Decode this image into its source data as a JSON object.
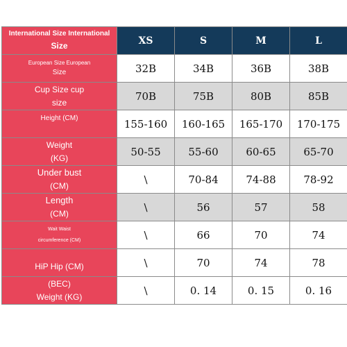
{
  "header": {
    "corner_line1": "International Size International",
    "corner_line2": "Size",
    "sizes": [
      "XS",
      "S",
      "M",
      "L"
    ]
  },
  "rows": [
    {
      "label_line1": "European Size European",
      "label_line2": "Size",
      "values": [
        "32B",
        "34B",
        "36B",
        "38B"
      ]
    },
    {
      "label_line1": "Cup Size cup",
      "label_line2": "size",
      "values": [
        "70B",
        "75B",
        "80B",
        "85B"
      ]
    },
    {
      "label_line1": "Height (CM)",
      "label_line2": "",
      "values": [
        "155-160",
        "160-165",
        "165-170",
        "170-175"
      ]
    },
    {
      "label_line1": "Weight",
      "label_line2": "(KG)",
      "values": [
        "50-55",
        "55-60",
        "60-65",
        "65-70"
      ]
    },
    {
      "label_line1": "Under bust",
      "label_line2": "(CM)",
      "values": [
        "\\",
        "70-84",
        "74-88",
        "78-92"
      ]
    },
    {
      "label_line1": "Length",
      "label_line2": "(CM)",
      "values": [
        "\\",
        "56",
        "57",
        "58"
      ]
    },
    {
      "label_line1": "Wait Waist",
      "label_line2": "circumference (CM)",
      "values": [
        "\\",
        "66",
        "70",
        "74"
      ]
    },
    {
      "label_line1": "HiP Hip (CM)",
      "label_line2": "",
      "values": [
        "\\",
        "70",
        "74",
        "78"
      ]
    },
    {
      "label_line1": "(BEC)",
      "label_line2": "Weight (KG)",
      "values": [
        "\\",
        "0. 14",
        "0. 15",
        "0. 16"
      ]
    }
  ],
  "colors": {
    "label_bg": "#e8455a",
    "header_bg": "#143a5a",
    "shade_bg": "#d8d8d8"
  }
}
